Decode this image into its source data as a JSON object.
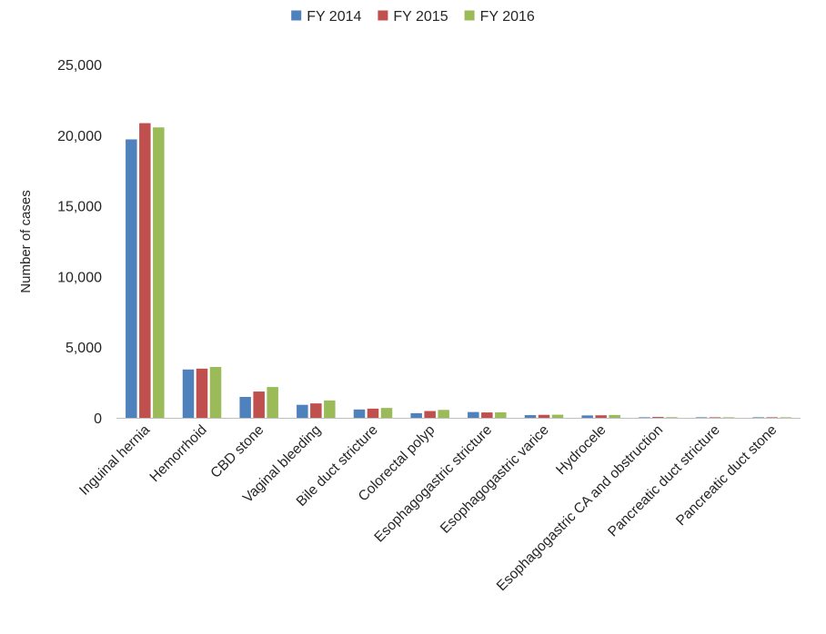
{
  "chart_data": {
    "type": "bar",
    "title": "",
    "xlabel": "",
    "ylabel": "Number of cases",
    "ylim": [
      0,
      25000
    ],
    "yticks": [
      0,
      5000,
      10000,
      15000,
      20000,
      25000
    ],
    "ytick_labels": [
      "0",
      "5,000",
      "10,000",
      "15,000",
      "20,000",
      "25,000"
    ],
    "grid": false,
    "legend_position": "top-center",
    "categories": [
      "Inguinal hernia",
      "Hemorrhoid",
      "CBD stone",
      "Vaginal bleeding",
      "Bile duct stricture",
      "Colorectal polyp",
      "Esophagogastric stricture",
      "Esophagogastric varice",
      "Hydrocele",
      "Esophagogastric CA and obstruction",
      "Pancreatic duct stricture",
      "Pancreatic duct stone"
    ],
    "series": [
      {
        "name": "FY 2014",
        "color": "#4f81bd",
        "values": [
          19700,
          3420,
          1480,
          920,
          590,
          330,
          410,
          190,
          170,
          30,
          10,
          5
        ]
      },
      {
        "name": "FY 2015",
        "color": "#c0504d",
        "values": [
          20850,
          3480,
          1860,
          1020,
          650,
          480,
          380,
          210,
          180,
          60,
          12,
          6
        ]
      },
      {
        "name": "FY 2016",
        "color": "#9bbb59",
        "values": [
          20550,
          3600,
          2180,
          1230,
          700,
          560,
          390,
          220,
          200,
          45,
          15,
          8
        ]
      }
    ]
  }
}
